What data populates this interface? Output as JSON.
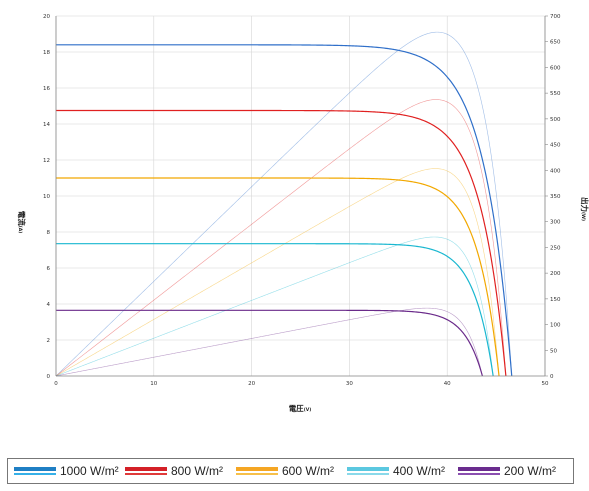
{
  "chart_data": {
    "type": "line",
    "xlabel": "電圧",
    "xunit": "(V)",
    "ylabel": "電流",
    "yunit": "(A)",
    "y2label": "出力",
    "y2unit": "(W)",
    "xlim": [
      0,
      50
    ],
    "ylim": [
      0,
      20
    ],
    "y2lim": [
      0,
      700
    ],
    "x_ticks": [
      0,
      10,
      20,
      30,
      40,
      50
    ],
    "y_ticks": [
      0,
      2,
      4,
      6,
      8,
      10,
      12,
      14,
      16,
      18,
      20
    ],
    "y2_ticks": [
      0,
      50,
      100,
      150,
      200,
      250,
      300,
      350,
      400,
      450,
      500,
      550,
      600,
      650,
      700
    ],
    "grid": true,
    "legend_position": "bottom",
    "series": [
      {
        "name": "1000 W/m²",
        "color": "#2f6fc9",
        "isc": 18.4,
        "voc": 46.6,
        "vmp": 38.5,
        "pmax": 668
      },
      {
        "name": "800 W/m²",
        "color": "#e02020",
        "isc": 14.75,
        "voc": 46.0,
        "vmp": 38.4,
        "pmax": 537
      },
      {
        "name": "600 W/m²",
        "color": "#f2a800",
        "isc": 11.0,
        "voc": 45.3,
        "vmp": 38.4,
        "pmax": 403
      },
      {
        "name": "400 W/m²",
        "color": "#19b7d0",
        "isc": 7.35,
        "voc": 44.7,
        "vmp": 38.3,
        "pmax": 270
      },
      {
        "name": "200 W/m²",
        "color": "#6a2a8a",
        "isc": 3.65,
        "voc": 43.6,
        "vmp": 37.8,
        "pmax": 132
      }
    ]
  },
  "legend": {
    "items": [
      {
        "label": "1000 W/m²",
        "color": "#1f7fc4",
        "thin": "#36b0e8"
      },
      {
        "label": "800 W/m²",
        "color": "#d42027",
        "thin": "#e03a3a"
      },
      {
        "label": "600 W/m²",
        "color": "#f5a623",
        "thin": "#f7c04a"
      },
      {
        "label": "400 W/m²",
        "color": "#5bc8e0",
        "thin": "#8ad9ea"
      },
      {
        "label": "200 W/m²",
        "color": "#6a2c8e",
        "thin": "#8a4fb0"
      }
    ]
  }
}
